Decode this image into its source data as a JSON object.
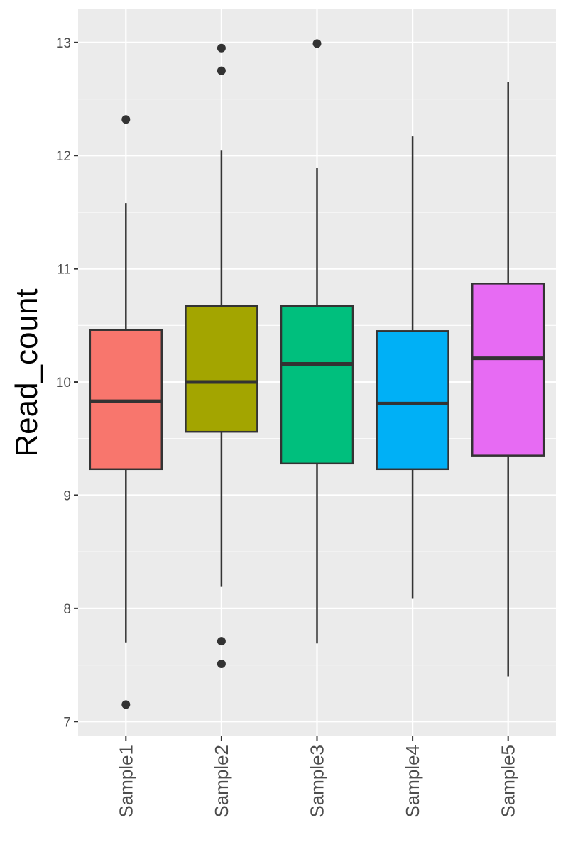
{
  "chart_data": {
    "type": "boxplot",
    "title": "",
    "xlabel": "",
    "ylabel": "Read_count",
    "ylim": [
      6.87,
      13.3
    ],
    "yticks": [
      7,
      8,
      9,
      10,
      11,
      12,
      13
    ],
    "grid": true,
    "legend": "none",
    "panel_background": "#EBEBEB",
    "categories": [
      "Sample1",
      "Sample2",
      "Sample3",
      "Sample4",
      "Sample5"
    ],
    "colors": [
      "#F8766D",
      "#A3A500",
      "#00BF7D",
      "#00B0F6",
      "#E76BF3"
    ],
    "boxes": [
      {
        "name": "Sample1",
        "whisker_low": 7.7,
        "q1": 9.23,
        "median": 9.83,
        "q3": 10.46,
        "whisker_high": 11.58,
        "outliers": [
          12.32,
          7.15
        ]
      },
      {
        "name": "Sample2",
        "whisker_low": 8.19,
        "q1": 9.56,
        "median": 10.0,
        "q3": 10.67,
        "whisker_high": 12.05,
        "outliers": [
          12.95,
          12.75,
          7.71,
          7.51
        ]
      },
      {
        "name": "Sample3",
        "whisker_low": 7.69,
        "q1": 9.28,
        "median": 10.16,
        "q3": 10.67,
        "whisker_high": 11.89,
        "outliers": [
          12.99
        ]
      },
      {
        "name": "Sample4",
        "whisker_low": 8.09,
        "q1": 9.23,
        "median": 9.81,
        "q3": 10.45,
        "whisker_high": 12.17,
        "outliers": []
      },
      {
        "name": "Sample5",
        "whisker_low": 7.4,
        "q1": 9.35,
        "median": 10.21,
        "q3": 10.87,
        "whisker_high": 12.65,
        "outliers": []
      }
    ]
  }
}
